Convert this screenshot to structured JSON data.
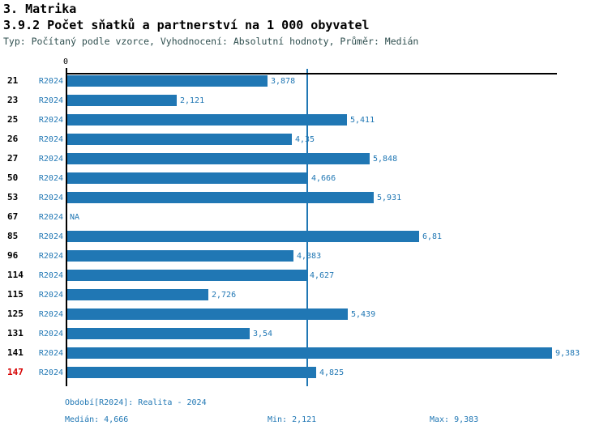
{
  "chart_data": {
    "type": "bar",
    "orientation": "horizontal",
    "section_title": "3. Matrika",
    "title": "3.9.2 Počet sňatků a partnerství na 1 000 obyvatel",
    "subtitle": "Typ: Počítaný podle vzorce, Vyhodnocení: Absolutní hodnoty, Průměr: Medián",
    "axis": {
      "origin_label": "0",
      "median_reference": 4.666
    },
    "legend_position": "none",
    "grid": false,
    "rows": [
      {
        "id": "21",
        "series": "R2024",
        "value": 3.878,
        "value_label": "3,878",
        "highlighted": false
      },
      {
        "id": "23",
        "series": "R2024",
        "value": 2.121,
        "value_label": "2,121",
        "highlighted": false
      },
      {
        "id": "25",
        "series": "R2024",
        "value": 5.411,
        "value_label": "5,411",
        "highlighted": false
      },
      {
        "id": "26",
        "series": "R2024",
        "value": 4.35,
        "value_label": "4,35",
        "highlighted": false
      },
      {
        "id": "27",
        "series": "R2024",
        "value": 5.848,
        "value_label": "5,848",
        "highlighted": false
      },
      {
        "id": "50",
        "series": "R2024",
        "value": 4.666,
        "value_label": "4,666",
        "highlighted": false
      },
      {
        "id": "53",
        "series": "R2024",
        "value": 5.931,
        "value_label": "5,931",
        "highlighted": false
      },
      {
        "id": "67",
        "series": "R2024",
        "value": null,
        "value_label": "NA",
        "highlighted": false
      },
      {
        "id": "85",
        "series": "R2024",
        "value": 6.81,
        "value_label": "6,81",
        "highlighted": false
      },
      {
        "id": "96",
        "series": "R2024",
        "value": 4.383,
        "value_label": "4,383",
        "highlighted": false
      },
      {
        "id": "114",
        "series": "R2024",
        "value": 4.627,
        "value_label": "4,627",
        "highlighted": false
      },
      {
        "id": "115",
        "series": "R2024",
        "value": 2.726,
        "value_label": "2,726",
        "highlighted": false
      },
      {
        "id": "125",
        "series": "R2024",
        "value": 5.439,
        "value_label": "5,439",
        "highlighted": false
      },
      {
        "id": "131",
        "series": "R2024",
        "value": 3.54,
        "value_label": "3,54",
        "highlighted": false
      },
      {
        "id": "141",
        "series": "R2024",
        "value": 9.383,
        "value_label": "9,383",
        "highlighted": false
      },
      {
        "id": "147",
        "series": "R2024",
        "value": 4.825,
        "value_label": "4,825",
        "highlighted": true
      }
    ],
    "stats": {
      "median": 4.666,
      "min": 2.121,
      "max": 9.383
    },
    "colors": {
      "bar": "#2077b4",
      "series_label": "#2077b4",
      "value_label": "#2077b4",
      "median_line": "#2077b4",
      "row_label": "#000000",
      "row_label_highlight": "#d60000",
      "axis": "#000000",
      "subtitle": "#2f4f4f"
    }
  },
  "footer": {
    "period": "Období[R2024]: Realita - 2024",
    "median_label": "Medián: 4,666",
    "min_label": "Min: 2,121",
    "max_label": "Max: 9,383"
  }
}
